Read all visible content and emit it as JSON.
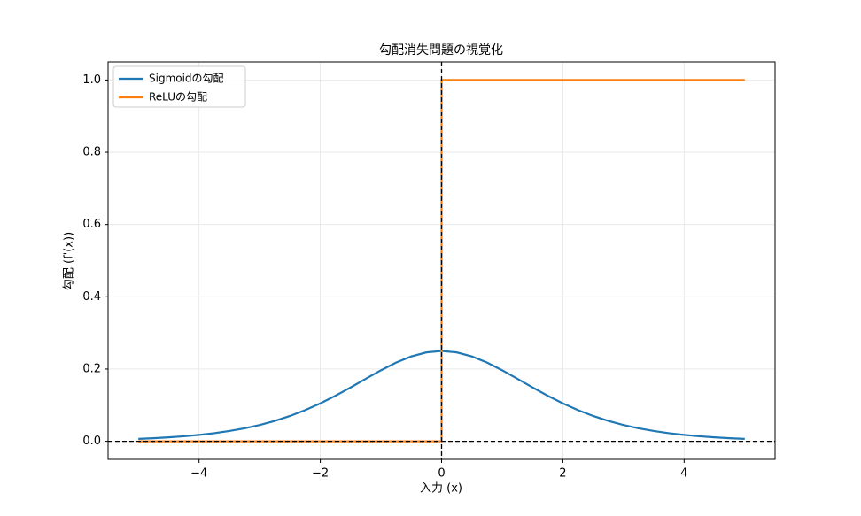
{
  "chart_data": {
    "type": "line",
    "title": "勾配消失問題の視覚化",
    "xlabel": "入力 (x)",
    "ylabel": "勾配 (f'(x))",
    "series": [
      {
        "name": "Sigmoidの勾配",
        "color": "#1f77b4",
        "x": [
          -5,
          -4.75,
          -4.5,
          -4.25,
          -4,
          -3.75,
          -3.5,
          -3.25,
          -3,
          -2.75,
          -2.5,
          -2.25,
          -2,
          -1.75,
          -1.5,
          -1.25,
          -1,
          -0.75,
          -0.5,
          -0.25,
          0,
          0.25,
          0.5,
          0.75,
          1,
          1.25,
          1.5,
          1.75,
          2,
          2.25,
          2.5,
          2.75,
          3,
          3.25,
          3.5,
          3.75,
          4,
          4.25,
          4.5,
          4.75,
          5
        ],
        "values": [
          0.0066,
          0.0085,
          0.0109,
          0.0139,
          0.0177,
          0.0224,
          0.0285,
          0.0359,
          0.0452,
          0.0565,
          0.0701,
          0.0863,
          0.105,
          0.1261,
          0.1491,
          0.1731,
          0.1966,
          0.2179,
          0.235,
          0.2461,
          0.25,
          0.2461,
          0.235,
          0.2179,
          0.1966,
          0.1731,
          0.1491,
          0.1261,
          0.105,
          0.0863,
          0.0701,
          0.0565,
          0.0452,
          0.0359,
          0.0285,
          0.0224,
          0.0177,
          0.0139,
          0.0109,
          0.0085,
          0.0066
        ]
      },
      {
        "name": "ReLUの勾配",
        "color": "#ff7f0e",
        "x": [
          -5,
          0,
          0,
          5
        ],
        "values": [
          0,
          0,
          1,
          1
        ]
      }
    ],
    "reference_lines": {
      "x": 0,
      "y": 0,
      "color": "#000000"
    },
    "xlim": [
      -5.5,
      5.5
    ],
    "ylim": [
      -0.05,
      1.05
    ],
    "xticks": [
      {
        "value": -4,
        "label": "−4"
      },
      {
        "value": -2,
        "label": "−2"
      },
      0,
      2,
      4
    ],
    "yticks": [
      {
        "value": 0,
        "label": "0.0"
      },
      0.2,
      0.4,
      0.6,
      0.8,
      {
        "value": 1,
        "label": "1.0"
      }
    ],
    "grid": true,
    "legend": "upper left"
  }
}
